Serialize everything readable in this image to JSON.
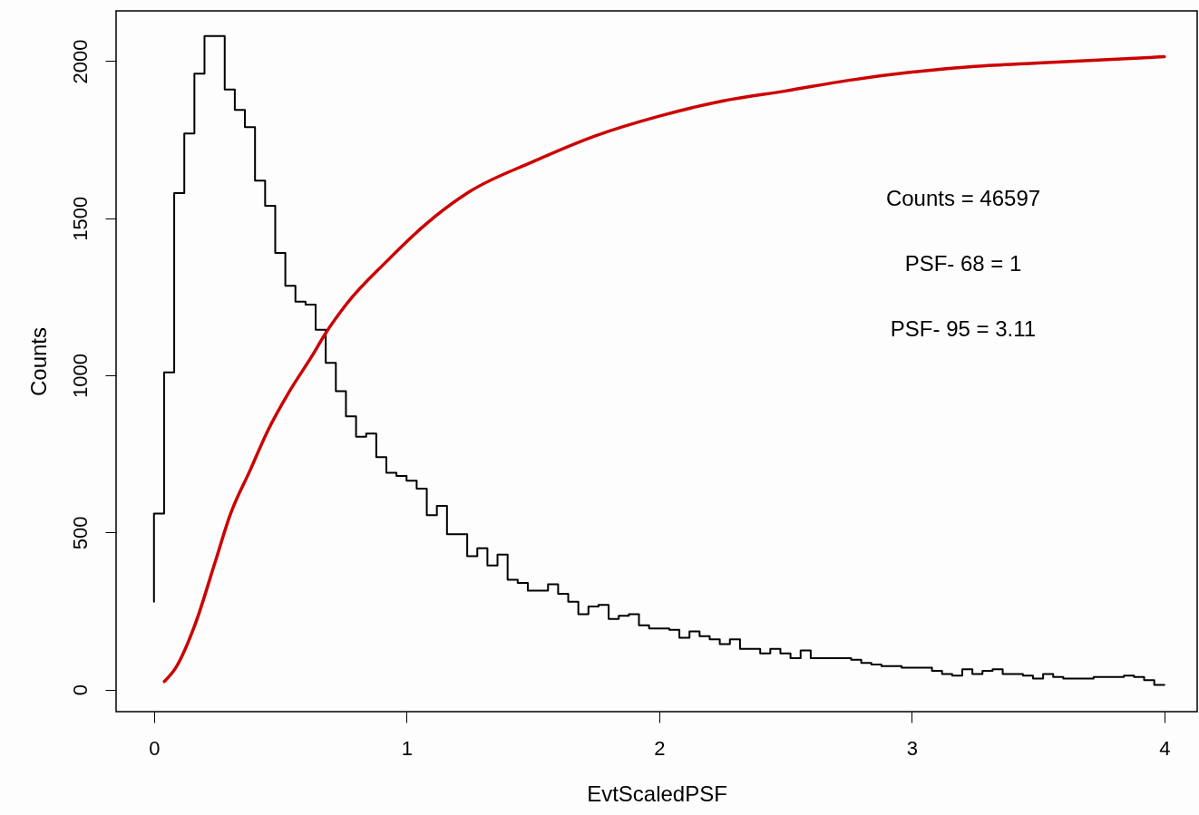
{
  "chart_data": {
    "type": "line",
    "xlabel": "EvtScaledPSF",
    "ylabel": "Counts",
    "xlim": [
      -0.15,
      4.13
    ],
    "ylim": [
      -70,
      2160
    ],
    "xticks": [
      0,
      1,
      2,
      3,
      4
    ],
    "yticks": [
      0,
      500,
      1000,
      1500,
      2000
    ],
    "grid": false,
    "marker": "none",
    "line_style": "solid",
    "annotations": [
      "Counts = 46597",
      "PSF- 68 = 1",
      "PSF- 95 = 3.11"
    ],
    "series": [
      {
        "type": "step",
        "color": "#000000",
        "x": [
          0,
          0.04,
          0.08,
          0.12,
          0.16,
          0.2,
          0.24,
          0.28,
          0.32,
          0.36,
          0.4,
          0.44,
          0.48,
          0.52,
          0.56,
          0.6,
          0.64,
          0.68,
          0.72,
          0.76,
          0.8,
          0.84,
          0.88,
          0.92,
          0.96,
          1,
          1.04,
          1.08,
          1.12,
          1.16,
          1.2,
          1.24,
          1.28,
          1.32,
          1.36,
          1.4,
          1.44,
          1.48,
          1.52,
          1.56,
          1.6,
          1.64,
          1.68,
          1.72,
          1.76,
          1.8,
          1.84,
          1.88,
          1.92,
          1.96,
          2,
          2.04,
          2.08,
          2.12,
          2.16,
          2.2,
          2.24,
          2.28,
          2.32,
          2.36,
          2.4,
          2.44,
          2.48,
          2.52,
          2.56,
          2.6,
          2.64,
          2.68,
          2.72,
          2.76,
          2.8,
          2.84,
          2.88,
          2.92,
          2.96,
          3,
          3.04,
          3.08,
          3.12,
          3.16,
          3.2,
          3.24,
          3.28,
          3.32,
          3.36,
          3.4,
          3.44,
          3.48,
          3.52,
          3.56,
          3.6,
          3.64,
          3.68,
          3.72,
          3.76,
          3.8,
          3.84,
          3.88,
          3.92,
          3.96,
          4
        ],
        "values": [
          280,
          560,
          1010,
          1580,
          1770,
          1960,
          2080,
          2080,
          1910,
          1845,
          1790,
          1620,
          1540,
          1390,
          1285,
          1235,
          1225,
          1145,
          1040,
          950,
          870,
          805,
          815,
          740,
          690,
          680,
          665,
          640,
          555,
          585,
          495,
          495,
          425,
          450,
          395,
          430,
          350,
          340,
          315,
          315,
          335,
          305,
          280,
          240,
          265,
          270,
          225,
          235,
          240,
          205,
          195,
          195,
          190,
          165,
          185,
          170,
          160,
          145,
          160,
          130,
          130,
          115,
          130,
          115,
          100,
          125,
          100,
          100,
          100,
          100,
          95,
          85,
          80,
          75,
          75,
          70,
          70,
          70,
          60,
          50,
          45,
          65,
          50,
          60,
          65,
          50,
          50,
          45,
          35,
          50,
          40,
          35,
          35,
          35,
          40,
          40,
          40,
          45,
          40,
          30,
          15
        ]
      },
      {
        "type": "line",
        "color": "#cc0000",
        "x": [
          0.041,
          0.085,
          0.163,
          0.241,
          0.302,
          0.38,
          0.45,
          0.537,
          0.625,
          0.677,
          0.764,
          0.92,
          1.076,
          1.25,
          1.5,
          1.75,
          2,
          2.25,
          2.5,
          2.75,
          3,
          3.25,
          3.5,
          4
        ],
        "values": [
          26,
          68,
          208,
          403,
          557,
          697,
          823,
          950,
          1061,
          1131,
          1229,
          1362,
          1481,
          1585,
          1680,
          1763,
          1825,
          1873,
          1905,
          1939,
          1965,
          1983,
          1994,
          2014
        ]
      }
    ]
  }
}
